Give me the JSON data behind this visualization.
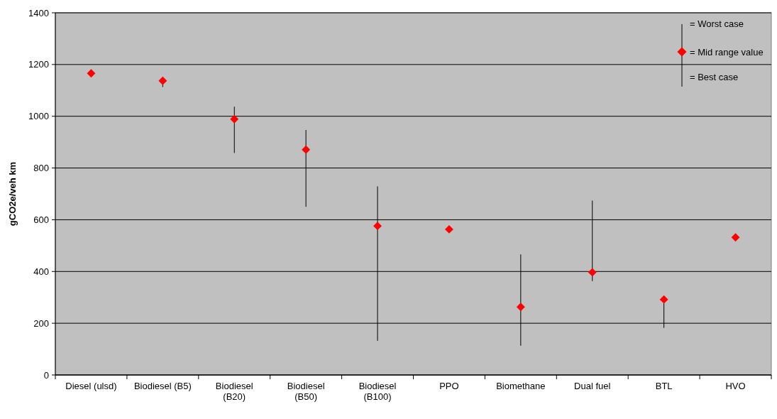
{
  "chart_data": {
    "type": "scatter",
    "ylabel": "gCO2e/veh km",
    "categories": [
      "Diesel (ulsd)",
      "Biodiesel (B5)",
      "Biodiesel (B20)",
      "Biodiesel (B50)",
      "Biodiesel (B100)",
      "PPO",
      "Biomethane",
      "Dual fuel",
      "BTL",
      "HVO"
    ],
    "series": [
      {
        "color": "#ff0000",
        "values": [
          1166,
          1137,
          989,
          871,
          576,
          563,
          263,
          397,
          292,
          532
        ],
        "errors": [
          null,
          [
            1113,
            1137
          ],
          [
            858,
            1037
          ],
          [
            650,
            947
          ],
          [
            132,
            729
          ],
          null,
          [
            113,
            466
          ],
          [
            363,
            674
          ],
          [
            182,
            292
          ],
          null
        ]
      }
    ],
    "ylim": [
      0,
      1400
    ],
    "yticks": [
      0,
      200,
      400,
      600,
      800,
      1000,
      1200,
      1400
    ],
    "grid": "y",
    "marker": "diamond",
    "annotations": [
      "= Worst case",
      "= Mid range value",
      "= Best case"
    ]
  }
}
